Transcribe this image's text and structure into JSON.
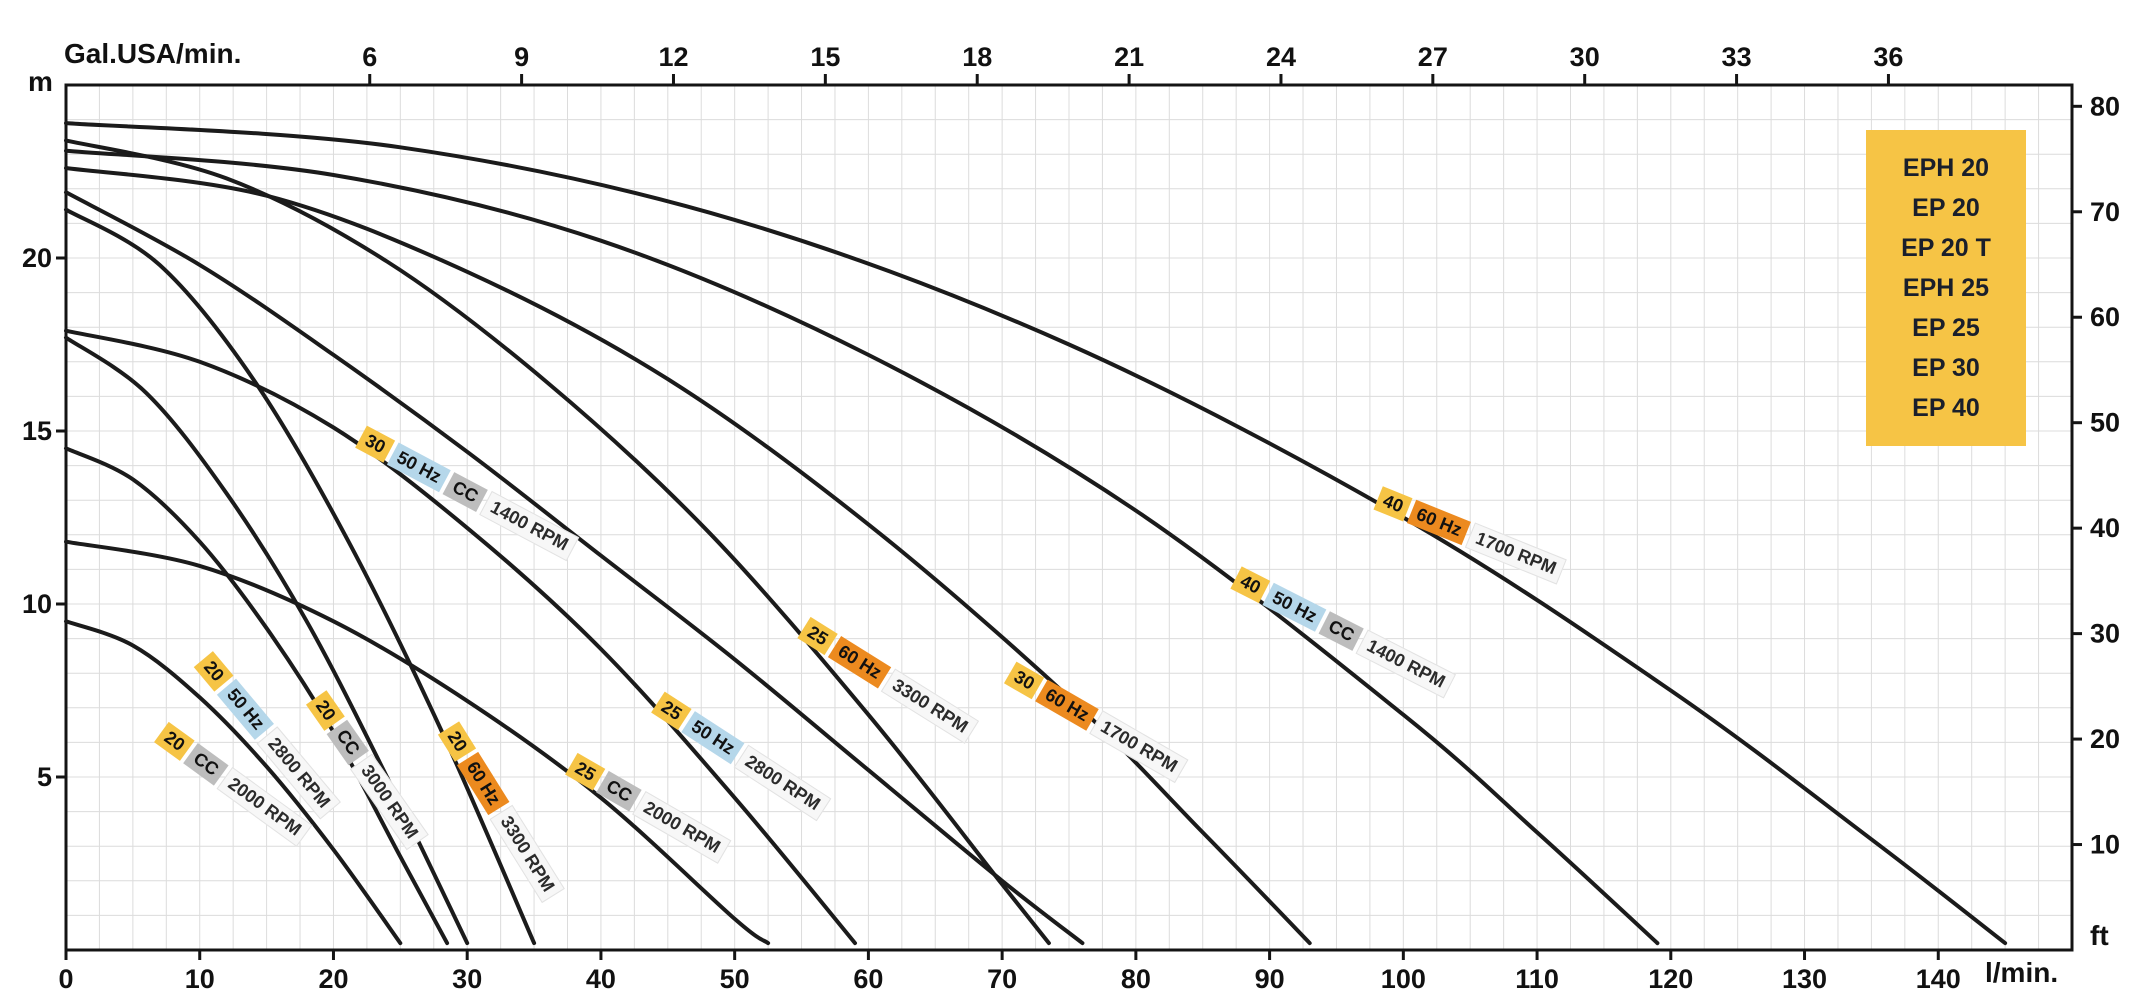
{
  "axis_labels": {
    "top": "Gal.USA/min.",
    "left": "m",
    "right": "ft",
    "bottom": "l/min."
  },
  "legend": {
    "models": [
      "EPH 20",
      "EP 20",
      "EP 20 T",
      "EPH 25",
      "EP 25",
      "EP 30",
      "EP 40"
    ]
  },
  "colors": {
    "curve": "#1b1b1b",
    "grid": "#dcdcdc",
    "axis": "#141414",
    "tick_text": "#111111",
    "legend_bg": "#f6c445",
    "legend_text": "#1a1f2b",
    "badge_model_bg": "#f6c445",
    "badge_hz50_bg": "#b5d7ea",
    "badge_hz60_bg": "#ec8a1f",
    "badge_cc_bg": "#bdbdbd",
    "badge_rpm_bg": "#f7f7f7"
  },
  "chart_data": {
    "type": "line",
    "x_axis_bottom": {
      "label": "l/min.",
      "min": 0,
      "max": 150,
      "ticks": [
        0,
        10,
        20,
        30,
        40,
        50,
        60,
        70,
        80,
        90,
        100,
        110,
        120,
        130,
        140
      ]
    },
    "x_axis_top": {
      "label": "Gal.USA/min.",
      "ticks": [
        6,
        9,
        12,
        15,
        18,
        21,
        24,
        27,
        30,
        33,
        36
      ],
      "lmin_per_gal": 3.7854
    },
    "y_axis_left": {
      "label": "m",
      "min": 0,
      "max": 25,
      "ticks": [
        5,
        10,
        15,
        20
      ]
    },
    "y_axis_right": {
      "label": "ft",
      "ticks": [
        10,
        20,
        30,
        40,
        50,
        60,
        70,
        80
      ],
      "m_per_ft": 0.3048
    },
    "grid": {
      "x_step": 2.5,
      "y_step": 1
    },
    "series": [
      {
        "id": "ep20-cc-2000-rpm",
        "badges": [
          {
            "text": "20",
            "kind": "model"
          },
          {
            "text": "CC",
            "kind": "cc"
          },
          {
            "text": "2000 RPM",
            "kind": "rpm"
          }
        ],
        "label": {
          "q": 12.5,
          "h": 4.8,
          "angle": 36
        },
        "points": [
          [
            0,
            9.5
          ],
          [
            5,
            8.8
          ],
          [
            10,
            7.3
          ],
          [
            15,
            5.3
          ],
          [
            20,
            2.9
          ],
          [
            25,
            0.2
          ]
        ]
      },
      {
        "id": "ep20-50hz-2800-rpm",
        "badges": [
          {
            "text": "20",
            "kind": "model"
          },
          {
            "text": "50 Hz",
            "kind": "hz50"
          },
          {
            "text": "2800 RPM",
            "kind": "rpm"
          }
        ],
        "label": {
          "q": 15,
          "h": 6.2,
          "angle": 50
        },
        "points": [
          [
            0,
            14.5
          ],
          [
            5,
            13.6
          ],
          [
            10,
            11.8
          ],
          [
            15,
            9.3
          ],
          [
            20,
            6.3
          ],
          [
            25,
            2.7
          ],
          [
            28.5,
            0.2
          ]
        ]
      },
      {
        "id": "ep20-cc-3000-rpm",
        "badges": [
          {
            "text": "20",
            "kind": "model"
          },
          {
            "text": "CC",
            "kind": "cc"
          },
          {
            "text": "3000 RPM",
            "kind": "rpm"
          }
        ],
        "label": {
          "q": 22.5,
          "h": 5.2,
          "angle": 55
        },
        "points": [
          [
            0,
            17.7
          ],
          [
            6,
            16.1
          ],
          [
            12,
            13.2
          ],
          [
            18,
            9.5
          ],
          [
            24,
            5.0
          ],
          [
            30,
            0.2
          ]
        ]
      },
      {
        "id": "ep20-60hz-3300-rpm",
        "badges": [
          {
            "text": "20",
            "kind": "model"
          },
          {
            "text": "60 Hz",
            "kind": "hz60"
          },
          {
            "text": "3300 RPM",
            "kind": "rpm"
          }
        ],
        "label": {
          "q": 32.5,
          "h": 4.0,
          "angle": 58
        },
        "points": [
          [
            0,
            21.4
          ],
          [
            7,
            19.8
          ],
          [
            14,
            16.5
          ],
          [
            21,
            11.9
          ],
          [
            28,
            6.4
          ],
          [
            35,
            0.2
          ]
        ]
      },
      {
        "id": "ep25-cc-2000-rpm",
        "badges": [
          {
            "text": "25",
            "kind": "model"
          },
          {
            "text": "CC",
            "kind": "cc"
          },
          {
            "text": "2000 RPM",
            "kind": "rpm"
          }
        ],
        "label": {
          "q": 43.5,
          "h": 4.1,
          "angle": 30
        },
        "points": [
          [
            0,
            11.8
          ],
          [
            10,
            11.1
          ],
          [
            20,
            9.5
          ],
          [
            30,
            7.2
          ],
          [
            40,
            4.4
          ],
          [
            50,
            0.9
          ],
          [
            52.5,
            0.2
          ]
        ]
      },
      {
        "id": "ep25-50hz-2800-rpm",
        "badges": [
          {
            "text": "25",
            "kind": "model"
          },
          {
            "text": "50 Hz",
            "kind": "hz50"
          },
          {
            "text": "2800 RPM",
            "kind": "rpm"
          }
        ],
        "label": {
          "q": 50.5,
          "h": 5.6,
          "angle": 33
        },
        "points": [
          [
            0,
            17.9
          ],
          [
            10,
            17.0
          ],
          [
            20,
            15.1
          ],
          [
            30,
            12.2
          ],
          [
            40,
            8.7
          ],
          [
            50,
            4.4
          ],
          [
            59,
            0.2
          ]
        ]
      },
      {
        "id": "ep25-60hz-3300-rpm",
        "badges": [
          {
            "text": "25",
            "kind": "model"
          },
          {
            "text": "60 Hz",
            "kind": "hz60"
          },
          {
            "text": "3300 RPM",
            "kind": "rpm"
          }
        ],
        "label": {
          "q": 61.5,
          "h": 7.8,
          "angle": 32
        },
        "points": [
          [
            0,
            23.4
          ],
          [
            12,
            22.3
          ],
          [
            24,
            19.9
          ],
          [
            36,
            16.4
          ],
          [
            48,
            12.1
          ],
          [
            60,
            6.8
          ],
          [
            70,
            1.9
          ],
          [
            73.5,
            0.2
          ]
        ]
      },
      {
        "id": "ep30-50hz-cc-1400-rpm",
        "badges": [
          {
            "text": "30",
            "kind": "model"
          },
          {
            "text": "50 Hz",
            "kind": "hz50"
          },
          {
            "text": "CC",
            "kind": "cc"
          },
          {
            "text": "1400 RPM",
            "kind": "rpm"
          }
        ],
        "label": {
          "q": 30,
          "h": 13.2,
          "angle": 28
        },
        "points": [
          [
            0,
            21.9
          ],
          [
            10,
            19.8
          ],
          [
            20,
            17.2
          ],
          [
            30,
            14.4
          ],
          [
            40,
            11.4
          ],
          [
            50,
            8.4
          ],
          [
            60,
            5.2
          ],
          [
            70,
            2.0
          ],
          [
            76,
            0.2
          ]
        ]
      },
      {
        "id": "ep30-60hz-1700-rpm",
        "badges": [
          {
            "text": "30",
            "kind": "model"
          },
          {
            "text": "60 Hz",
            "kind": "hz60"
          },
          {
            "text": "1700 RPM",
            "kind": "rpm"
          }
        ],
        "label": {
          "q": 77,
          "h": 6.6,
          "angle": 30
        },
        "points": [
          [
            0,
            22.6
          ],
          [
            15,
            21.8
          ],
          [
            30,
            19.6
          ],
          [
            45,
            16.5
          ],
          [
            60,
            12.3
          ],
          [
            75,
            7.3
          ],
          [
            85,
            3.4
          ],
          [
            93,
            0.2
          ]
        ]
      },
      {
        "id": "ep40-50hz-cc-1400-rpm",
        "badges": [
          {
            "text": "40",
            "kind": "model"
          },
          {
            "text": "50 Hz",
            "kind": "hz50"
          },
          {
            "text": "CC",
            "kind": "cc"
          },
          {
            "text": "1400 RPM",
            "kind": "rpm"
          }
        ],
        "label": {
          "q": 95.5,
          "h": 9.2,
          "angle": 27
        },
        "points": [
          [
            0,
            23.1
          ],
          [
            20,
            22.4
          ],
          [
            40,
            20.5
          ],
          [
            60,
            17.2
          ],
          [
            80,
            12.7
          ],
          [
            100,
            6.8
          ],
          [
            110,
            3.4
          ],
          [
            119,
            0.2
          ]
        ]
      },
      {
        "id": "ep40-60hz-1700-rpm",
        "badges": [
          {
            "text": "40",
            "kind": "model"
          },
          {
            "text": "60 Hz",
            "kind": "hz60"
          },
          {
            "text": "1700 RPM",
            "kind": "rpm"
          }
        ],
        "label": {
          "q": 105,
          "h": 12.0,
          "angle": 22
        },
        "points": [
          [
            0,
            23.9
          ],
          [
            25,
            23.2
          ],
          [
            50,
            21.1
          ],
          [
            75,
            17.5
          ],
          [
            100,
            12.5
          ],
          [
            120,
            7.5
          ],
          [
            135,
            3.2
          ],
          [
            145,
            0.2
          ]
        ]
      }
    ]
  }
}
